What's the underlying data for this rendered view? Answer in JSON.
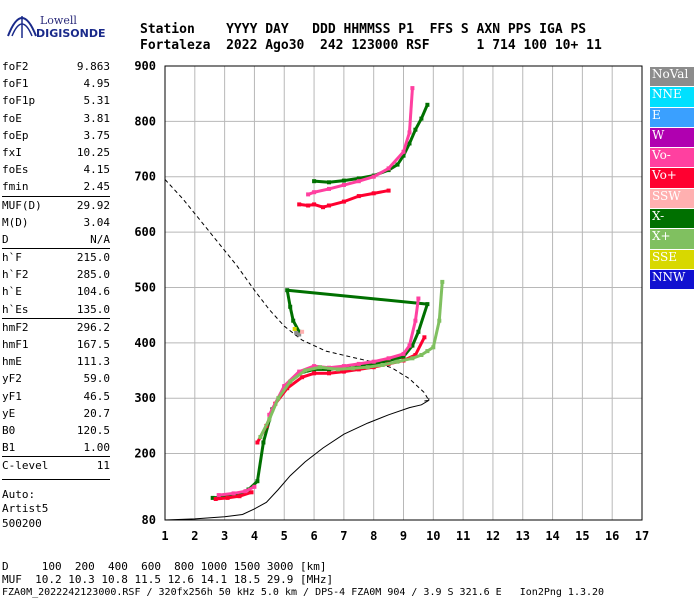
{
  "logo": {
    "line1": "Lowell",
    "line2": "DIGISONDE"
  },
  "header": {
    "row1": "Station    YYYY DAY   DDD HHMMSS P1  FFS S AXN PPS IGA PS",
    "row2": "Fortaleza  2022 Ago30  242 123000 RSF      1 714 100 10+ 11"
  },
  "params": [
    {
      "label": "foF2",
      "value": "9.863"
    },
    {
      "label": "foF1",
      "value": "4.95"
    },
    {
      "label": "foF1p",
      "value": "5.31"
    },
    {
      "label": "foE",
      "value": "3.81"
    },
    {
      "label": "foEp",
      "value": "3.75"
    },
    {
      "label": "fxI",
      "value": "10.25"
    },
    {
      "label": "foEs",
      "value": "4.15"
    },
    {
      "label": "fmin",
      "value": "2.45"
    },
    {
      "label": "MUF(D)",
      "value": "29.92"
    },
    {
      "label": "M(D)",
      "value": "3.04"
    },
    {
      "label": "D",
      "value": "N/A"
    },
    {
      "label": "h`F",
      "value": "215.0"
    },
    {
      "label": "h`F2",
      "value": "285.0"
    },
    {
      "label": "h`E",
      "value": "104.6"
    },
    {
      "label": "h`Es",
      "value": "135.0"
    },
    {
      "label": "hmF2",
      "value": "296.2"
    },
    {
      "label": "hmF1",
      "value": "167.5"
    },
    {
      "label": "hmE",
      "value": "111.3"
    },
    {
      "label": "yF2",
      "value": "59.0"
    },
    {
      "label": "yF1",
      "value": "46.5"
    },
    {
      "label": "yE",
      "value": "20.7"
    },
    {
      "label": "B0",
      "value": "120.5"
    },
    {
      "label": "B1",
      "value": "1.00"
    },
    {
      "label": "C-level",
      "value": "11"
    }
  ],
  "autoscale": {
    "line1": "Auto:",
    "line2": "Artist5",
    "line3": "500200"
  },
  "legend": [
    {
      "label": "NoVal",
      "color": "#8c8c8c"
    },
    {
      "label": "NNE",
      "color": "#00e0ff"
    },
    {
      "label": "E",
      "color": "#3aa0ff"
    },
    {
      "label": "W",
      "color": "#b000b0"
    },
    {
      "label": "Vo-",
      "color": "#ff40a0"
    },
    {
      "label": "Vo+",
      "color": "#ff0030"
    },
    {
      "label": "SSW",
      "color": "#ffb0b0"
    },
    {
      "label": "X-",
      "color": "#007000"
    },
    {
      "label": "X+",
      "color": "#80c060"
    },
    {
      "label": "SSE",
      "color": "#d8d800"
    },
    {
      "label": "NNW",
      "color": "#1010d0"
    }
  ],
  "footer": {
    "d_row": "D     100  200  400  600  800 1000 1500 3000 [km]",
    "muf_row": "MUF  10.2 10.3 10.8 11.5 12.6 14.1 18.5 29.9 [MHz]",
    "file_row": "FZA0M_2022242123000.RSF / 320fx256h 50 kHz 5.0 km / DPS-4 FZA0M 904 / 3.9 S 321.6 E   Ion2Png 1.3.20"
  },
  "chart_data": {
    "type": "scatter",
    "title": "",
    "xlabel": "",
    "ylabel": "",
    "xlim": [
      1,
      17
    ],
    "ylim": [
      80,
      900
    ],
    "xticks": [
      1,
      2,
      3,
      4,
      5,
      6,
      7,
      8,
      9,
      10,
      11,
      12,
      13,
      14,
      15,
      16,
      17
    ],
    "yticks": [
      80,
      200,
      300,
      400,
      500,
      600,
      700,
      800,
      900
    ],
    "grid": true,
    "series": [
      {
        "name": "X-",
        "color": "#007000",
        "x": [
          2.6,
          3.0,
          3.4,
          3.8,
          4.1,
          4.3,
          4.6,
          5.0,
          5.5,
          6.0,
          6.5,
          7.0,
          7.5,
          8.0,
          8.5,
          9.0,
          9.3,
          9.5,
          9.8,
          5.1,
          5.2,
          5.3,
          5.5,
          6.0,
          6.5,
          7.0,
          7.5,
          8.0,
          8.5,
          8.8,
          9.0,
          9.2,
          9.4,
          9.6,
          9.8
        ],
        "y": [
          120,
          122,
          125,
          135,
          150,
          220,
          280,
          320,
          345,
          352,
          352,
          355,
          358,
          362,
          368,
          375,
          395,
          420,
          470,
          495,
          465,
          440,
          420,
          692,
          690,
          693,
          697,
          702,
          712,
          722,
          738,
          760,
          785,
          805,
          830
        ]
      },
      {
        "name": "Vo+",
        "color": "#ff0030",
        "x": [
          2.7,
          3.1,
          3.5,
          3.9,
          4.1,
          4.4,
          4.7,
          5.1,
          5.6,
          6.0,
          6.5,
          7.0,
          7.5,
          8.0,
          8.5,
          9.0,
          9.4,
          9.7,
          5.5,
          5.8,
          6.0,
          6.3,
          6.5,
          7.0,
          7.5,
          8.0,
          8.5
        ],
        "y": [
          118,
          120,
          123,
          130,
          220,
          250,
          290,
          318,
          338,
          345,
          345,
          348,
          352,
          356,
          362,
          368,
          378,
          410,
          650,
          648,
          650,
          645,
          648,
          655,
          665,
          670,
          675
        ]
      },
      {
        "name": "Vo-",
        "color": "#ff40a0",
        "x": [
          2.8,
          3.3,
          3.7,
          4.0,
          4.5,
          5.0,
          5.5,
          6.0,
          6.5,
          7.0,
          7.5,
          8.0,
          8.5,
          9.0,
          9.2,
          9.4,
          9.5,
          5.8,
          6.0,
          6.5,
          7.0,
          7.5,
          8.0,
          8.5,
          9.0,
          9.2,
          9.3
        ],
        "y": [
          125,
          128,
          132,
          140,
          270,
          322,
          348,
          358,
          355,
          358,
          362,
          366,
          372,
          380,
          395,
          440,
          480,
          668,
          672,
          678,
          685,
          692,
          700,
          715,
          745,
          780,
          860
        ]
      },
      {
        "name": "X+",
        "color": "#80c060",
        "x": [
          4.2,
          4.5,
          4.8,
          5.2,
          5.7,
          6.2,
          6.8,
          7.3,
          7.8,
          8.3,
          8.8,
          9.3,
          9.6,
          9.8,
          10.0,
          10.2,
          10.3
        ],
        "y": [
          230,
          262,
          300,
          330,
          350,
          356,
          352,
          354,
          356,
          360,
          366,
          372,
          378,
          385,
          392,
          440,
          510
        ]
      },
      {
        "name": "NoVal",
        "color": "#8c8c8c",
        "x": [
          5.4,
          5.5
        ],
        "y": [
          418,
          415
        ]
      },
      {
        "name": "SSE",
        "color": "#d8d800",
        "x": [
          5.35
        ],
        "y": [
          425
        ]
      },
      {
        "name": "SSW",
        "color": "#ffb0b0",
        "x": [
          5.6
        ],
        "y": [
          420
        ]
      }
    ],
    "profile": {
      "x": [
        1.0,
        2.0,
        3.0,
        3.6,
        4.0,
        4.4,
        4.8,
        5.2,
        5.7,
        6.3,
        7.0,
        7.8,
        8.5,
        9.2,
        9.6,
        9.85,
        9.85
      ],
      "y": [
        80,
        82,
        86,
        90,
        100,
        112,
        135,
        160,
        185,
        210,
        235,
        255,
        270,
        283,
        288,
        296,
        300
      ]
    },
    "dashed_profile": {
      "x": [
        1.0,
        1.6,
        2.2,
        2.8,
        3.4,
        4.0,
        4.5,
        5.0,
        5.6,
        6.4,
        7.2,
        8.0,
        8.6,
        9.2,
        9.7,
        9.85,
        9.7
      ],
      "y": [
        695,
        660,
        620,
        580,
        540,
        495,
        460,
        430,
        405,
        385,
        375,
        365,
        355,
        335,
        310,
        296,
        295
      ]
    }
  }
}
